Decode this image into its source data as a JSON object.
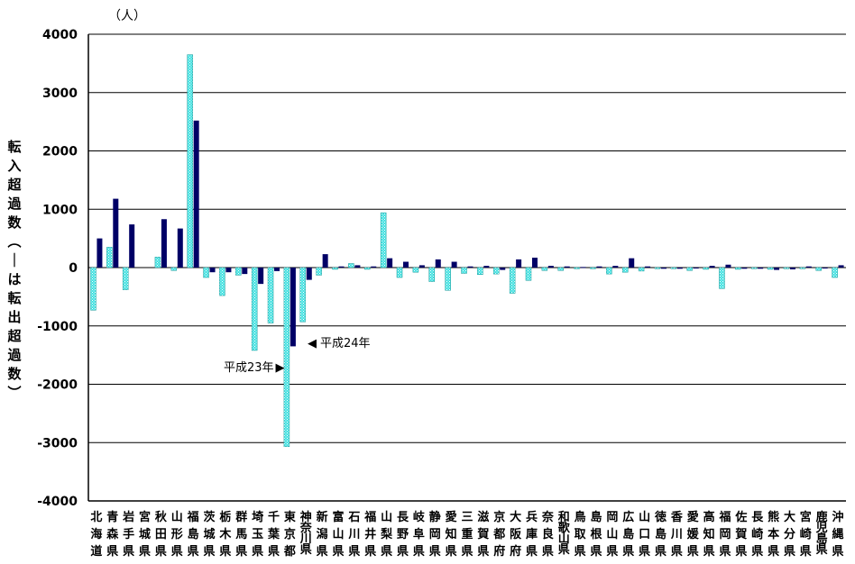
{
  "chart_data": {
    "type": "bar",
    "unit_label": "（人）",
    "ylabel": "転入超過数（－は転出超過数）",
    "ylim": [
      -4000,
      4000
    ],
    "y_ticks": [
      "4000",
      "3000",
      "2000",
      "1000",
      "0",
      "-1000",
      "-2000",
      "-3000",
      "-4000"
    ],
    "grid": true,
    "categories": [
      "北海道",
      "青森県",
      "岩手県",
      "宮城県",
      "秋田県",
      "山形県",
      "福島県",
      "茨城県",
      "栃木県",
      "群馬県",
      "埼玉県",
      "千葉県",
      "東京都",
      "神奈川県",
      "新潟県",
      "富山県",
      "石川県",
      "福井県",
      "山梨県",
      "長野県",
      "岐阜県",
      "静岡県",
      "愛知県",
      "三重県",
      "滋賀県",
      "京都府",
      "大阪府",
      "兵庫県",
      "奈良県",
      "和歌山県",
      "鳥取県",
      "島根県",
      "岡山県",
      "広島県",
      "山口県",
      "徳島県",
      "香川県",
      "愛媛県",
      "高知県",
      "福岡県",
      "佐賀県",
      "長崎県",
      "熊本県",
      "大分県",
      "宮崎県",
      "鹿児島県",
      "沖縄県"
    ],
    "series": [
      {
        "name": "",
        "color": "#40E0E0",
        "values": [
          -730,
          350,
          -380,
          0,
          180,
          -50,
          3650,
          -170,
          -480,
          -130,
          -1420,
          -950,
          -3070,
          -930,
          -130,
          -30,
          70,
          -30,
          940,
          -170,
          -80,
          -240,
          -390,
          -100,
          -120,
          -110,
          -440,
          -220,
          -50,
          -50,
          -20,
          -20,
          -110,
          -80,
          -60,
          -20,
          -20,
          -50,
          -30,
          -360,
          -30,
          -20,
          -30,
          -20,
          -20,
          -50,
          -170
        ]
      },
      {
        "name": "",
        "color": "#000066",
        "values": [
          500,
          1180,
          740,
          0,
          830,
          670,
          2520,
          -80,
          -80,
          -110,
          -280,
          -60,
          -1350,
          -210,
          230,
          20,
          40,
          20,
          160,
          100,
          40,
          140,
          100,
          20,
          30,
          -40,
          140,
          170,
          30,
          20,
          10,
          20,
          30,
          160,
          20,
          -20,
          -20,
          -10,
          30,
          50,
          -20,
          -20,
          -40,
          -30,
          20,
          -10,
          40
        ]
      }
    ],
    "annotations": [
      {
        "text": "平成23年",
        "arrow": "▶"
      },
      {
        "text": "平成24年",
        "arrow": "◀"
      }
    ],
    "legend": "none"
  }
}
